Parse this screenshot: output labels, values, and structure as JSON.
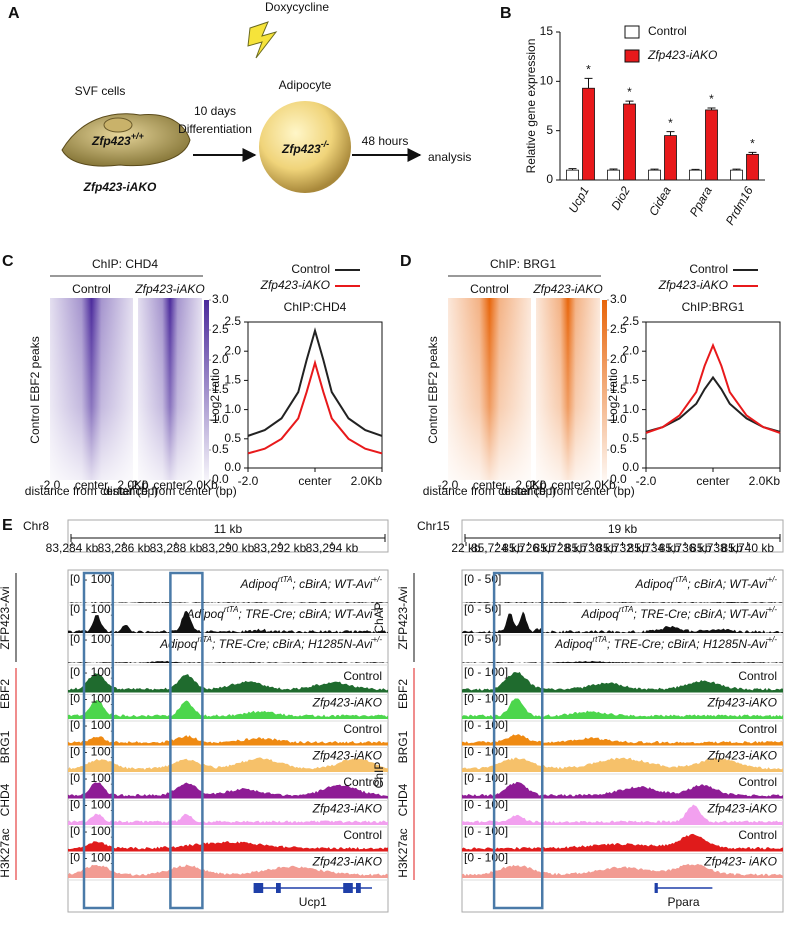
{
  "panel_a": {
    "label": "A",
    "treatment": "Doxycycline",
    "source": "SVF cells",
    "duration": "10 days",
    "step": "Differentiation",
    "before_gene": "Zfp423",
    "before_sup": "+/+",
    "mouse": "Zfp423-iAKO",
    "after_gene": "Zfp423",
    "after_sup": "-/-",
    "result": "Adipocyte",
    "wait": "48 hours",
    "endpoint": "analysis"
  },
  "chart_data": [
    {
      "panel": "B",
      "type": "bar",
      "y_label": "Relative gene expression",
      "categories": [
        "Ucp1",
        "Dio2",
        "Cidea",
        "Ppara",
        "Prdm16"
      ],
      "series": [
        {
          "name": "Control",
          "color": "#ffffff",
          "values": [
            1,
            1,
            1,
            1,
            1
          ],
          "errors": [
            0.15,
            0.12,
            0.1,
            0.08,
            0.1
          ]
        },
        {
          "name": "Zfp423-iAKO",
          "color": "#e8191b",
          "values": [
            9.3,
            7.7,
            4.5,
            7.1,
            2.6
          ],
          "errors": [
            1.0,
            0.3,
            0.4,
            0.2,
            0.2
          ]
        }
      ],
      "significance": [
        "*",
        "*",
        "*",
        "*",
        "*"
      ],
      "ylim": [
        0,
        15
      ],
      "yticks": [
        0,
        5,
        10,
        15
      ]
    },
    {
      "panel": "C",
      "type": "line",
      "title": "ChIP:CHD4",
      "heatmap_title": "ChIP: CHD4",
      "heatmap_color": "#4b2a9c",
      "heatmap_columns": [
        "Control",
        "Zfp423-iAKO"
      ],
      "heatmap_row_label": "Control EBF2 peaks",
      "heatmap_xticks": [
        "-2.0",
        "center",
        "2.0Kb"
      ],
      "heatmap_x_label": "distance from center (bp)",
      "colorbar_ticks": [
        {
          "value": 0,
          "label": "0.0"
        },
        0.5,
        {
          "value": 1,
          "label": "1.0"
        },
        1.5,
        {
          "value": 2,
          "label": "2.0"
        },
        2.5,
        {
          "value": 3,
          "label": "3.0"
        }
      ],
      "y_label": "Log2 ratio",
      "x": [
        -2,
        -1.5,
        -1,
        -0.5,
        -0.25,
        0,
        0.25,
        0.5,
        1,
        1.5,
        2
      ],
      "series": [
        {
          "name": "Control",
          "color": "#222222",
          "values": [
            0.55,
            0.65,
            0.85,
            1.3,
            1.85,
            2.35,
            1.85,
            1.3,
            0.85,
            0.65,
            0.55
          ]
        },
        {
          "name": "Zfp423-iAKO",
          "color": "#e8191b",
          "values": [
            0.25,
            0.33,
            0.5,
            0.85,
            1.3,
            1.8,
            1.3,
            0.85,
            0.5,
            0.33,
            0.25
          ]
        }
      ],
      "xlim": [
        -2,
        2
      ],
      "xticks": [
        {
          "value": -2,
          "label": "-2.0"
        },
        {
          "value": 0,
          "label": "center"
        },
        {
          "value": 2,
          "label": "2.0Kb"
        }
      ],
      "ylim": [
        0,
        2.5
      ],
      "yticks": [
        {
          "value": 0,
          "label": "0.0"
        },
        0.5,
        {
          "value": 1,
          "label": "1.0"
        },
        1.5,
        {
          "value": 2,
          "label": "2.0"
        },
        2.5
      ]
    },
    {
      "panel": "D",
      "type": "line",
      "title": "ChIP:BRG1",
      "heatmap_title": "ChIP: BRG1",
      "heatmap_color": "#e8650a",
      "heatmap_columns": [
        "Control",
        "Zfp423-iAKO"
      ],
      "heatmap_row_label": "Control EBF2 peaks",
      "heatmap_xticks": [
        "-2.0",
        "center",
        "2.0Kb"
      ],
      "heatmap_x_label": "distance from center (bp)",
      "colorbar_ticks": [
        {
          "value": 0,
          "label": "0.0"
        },
        0.5,
        {
          "value": 1,
          "label": "1.0"
        },
        1.5,
        {
          "value": 2,
          "label": "2.0"
        },
        2.5,
        {
          "value": 3,
          "label": "3.0"
        }
      ],
      "y_label": "Log2 ratio",
      "x": [
        -2,
        -1.5,
        -1,
        -0.5,
        -0.25,
        0,
        0.25,
        0.5,
        1,
        1.5,
        2
      ],
      "series": [
        {
          "name": "Control",
          "color": "#222222",
          "values": [
            0.62,
            0.7,
            0.85,
            1.1,
            1.35,
            1.55,
            1.35,
            1.1,
            0.85,
            0.7,
            0.62
          ]
        },
        {
          "name": "Zfp423-iAKO",
          "color": "#e8191b",
          "values": [
            0.6,
            0.7,
            0.9,
            1.3,
            1.75,
            2.1,
            1.75,
            1.3,
            0.9,
            0.7,
            0.6
          ]
        }
      ],
      "xlim": [
        -2,
        2
      ],
      "xticks": [
        {
          "value": -2,
          "label": "-2.0"
        },
        {
          "value": 0,
          "label": "center"
        },
        {
          "value": 2,
          "label": "2.0Kb"
        }
      ],
      "ylim": [
        0,
        2.5
      ],
      "yticks": [
        {
          "value": 0,
          "label": "0.0"
        },
        0.5,
        {
          "value": 1,
          "label": "1.0"
        },
        1.5,
        {
          "value": 2,
          "label": "2.0"
        },
        2.5
      ]
    }
  ],
  "panel_e": {
    "label": "E",
    "chap_group": "ChAP",
    "chap_target": "ZFP423-Avi",
    "chip_group": "ChIP",
    "chip_targets": [
      "EBF2",
      "BRG1",
      "CHD4",
      "H3K27ac"
    ],
    "chap_genotypes": [
      [
        "Adipoq",
        "rtTA",
        "; cBirA; WT-Avi",
        "+/-"
      ],
      [
        "Adipoq",
        "rtTA",
        "; TRE-Cre; cBirA; WT-Avi",
        "+/-"
      ],
      [
        "Adipoq",
        "rtTA",
        "; TRE-Cre; cBirA; H1285N-Avi",
        "+/-"
      ]
    ],
    "views": [
      {
        "chrom": "Chr8",
        "span": "11 kb",
        "coords": [
          "83,284 kb",
          "83,286 kb",
          "83,288 kb",
          "83,290 kb",
          "83,292 kb",
          "83,294 kb"
        ],
        "gene": "Ucp1",
        "ranges": [
          "[0 - 100]",
          "[0 - 100]",
          "[0 - 100]",
          "[0 - 100]",
          "[0 - 100]",
          "[0 - 100]",
          "[0 - 100]",
          "[0 - 100]",
          "[0 - 100]",
          "[0 - 100]",
          "[0 - 100]"
        ],
        "conditions": [
          "Control",
          "Zfp423-iAKO",
          "Control",
          "Zfp423-iAKO",
          "Control",
          "Zfp423-iAKO",
          "Control",
          "Zfp423-iAKO"
        ]
      },
      {
        "chrom": "Chr15",
        "span": "19 kb",
        "coords": [
          "22 kb",
          "85,724 kb",
          "85,726 kb",
          "85,728 kb",
          "85,730 kb",
          "85,732 kb",
          "85,734 kb",
          "85,736 kb",
          "85,738 kb",
          "85,740 kb"
        ],
        "gene": "Ppara",
        "ranges": [
          "[0 - 50]",
          "[0 - 50]",
          "[0 - 50]",
          "[0 - 100]",
          "[0 - 100]",
          "[0 - 100]",
          "[0 - 100]",
          "[0 - 100]",
          "[0 - 100]",
          "[0 - 100]",
          "[0 - 100]"
        ],
        "conditions": [
          "Control",
          "Zfp423-iAKO",
          "Control",
          "Zfp423-iAKO",
          "Control",
          "Zfp423-iAKO",
          "Control",
          "Zfp423- iAKO"
        ]
      }
    ]
  }
}
